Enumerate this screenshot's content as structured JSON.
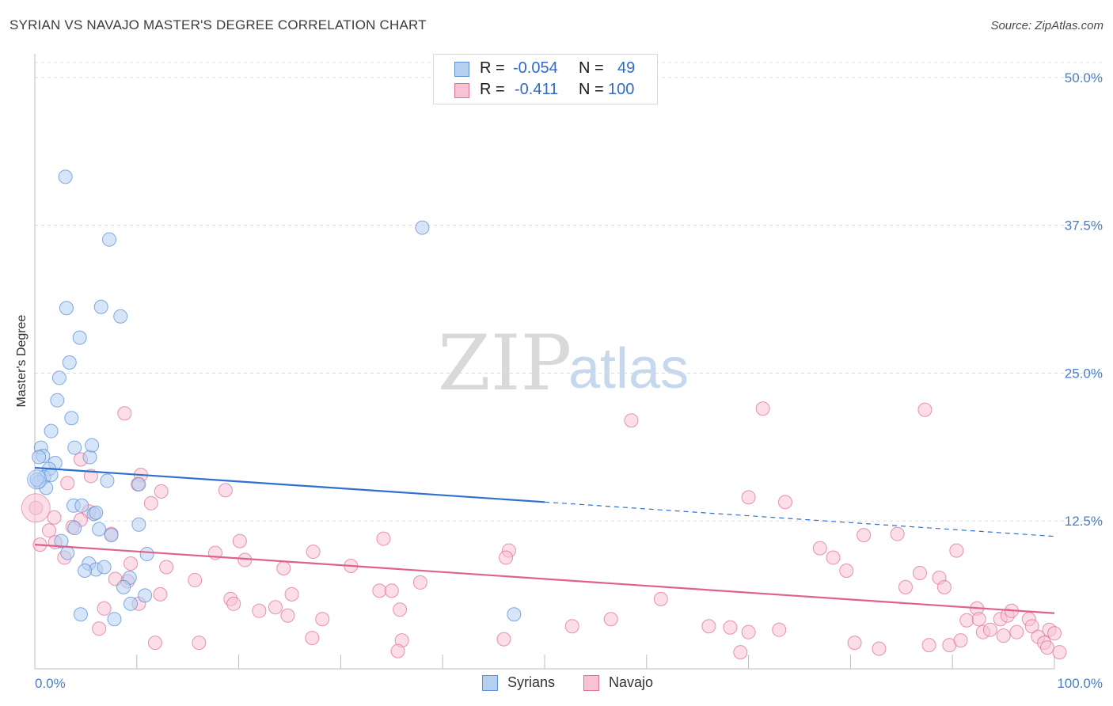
{
  "title": "SYRIAN VS NAVAJO MASTER'S DEGREE CORRELATION CHART",
  "source": "Source: ZipAtlas.com",
  "watermark": {
    "zip": "ZIP",
    "atlas": "atlas"
  },
  "colors": {
    "syrians": "#5b8fd6",
    "syrians_fill": "#b6d0f2",
    "navajo": "#e0709a",
    "navajo_fill": "#f7c3d4",
    "tick_label": "#4a7cc8"
  },
  "legend": {
    "rows": [
      {
        "r_label": "R =",
        "r_value": "-0.054",
        "n_label": "N =",
        "n_value": "49"
      },
      {
        "r_label": "R =",
        "r_value": "-0.411",
        "n_label": "N =",
        "n_value": "100"
      }
    ]
  },
  "bottom_legend": {
    "syrians": "Syrians",
    "navajo": "Navajo"
  },
  "chart_data": {
    "type": "scatter",
    "title": "SYRIAN VS NAVAJO MASTER'S DEGREE CORRELATION CHART",
    "xlabel": "",
    "ylabel": "Master's Degree",
    "xlim": [
      0,
      100
    ],
    "ylim": [
      0,
      52
    ],
    "x_tick_labels": [
      "0.0%",
      "100.0%"
    ],
    "y_ticks": [
      12.5,
      25.0,
      37.5,
      50.0
    ],
    "y_tick_labels": [
      "12.5%",
      "25.0%",
      "37.5%",
      "50.0%"
    ],
    "grid": true,
    "series": [
      {
        "name": "Syrians",
        "r": -0.054,
        "n": 49,
        "trend": {
          "x0": 0,
          "y0": 17.0,
          "x1": 100,
          "y1": 11.2,
          "solid_until": 50
        },
        "points": [
          [
            3.0,
            41.6
          ],
          [
            7.3,
            36.3
          ],
          [
            38.0,
            37.3
          ],
          [
            3.1,
            30.5
          ],
          [
            6.5,
            30.6
          ],
          [
            8.4,
            29.8
          ],
          [
            4.4,
            28.0
          ],
          [
            3.4,
            25.9
          ],
          [
            2.4,
            24.6
          ],
          [
            2.2,
            22.7
          ],
          [
            3.6,
            21.2
          ],
          [
            1.6,
            20.1
          ],
          [
            0.6,
            18.7
          ],
          [
            0.8,
            18.0
          ],
          [
            2.0,
            17.4
          ],
          [
            1.4,
            16.9
          ],
          [
            0.4,
            17.9
          ],
          [
            0.9,
            16.2
          ],
          [
            1.6,
            16.4
          ],
          [
            0.4,
            15.8
          ],
          [
            1.1,
            15.3
          ],
          [
            5.4,
            17.9
          ],
          [
            5.6,
            18.9
          ],
          [
            3.9,
            18.7
          ],
          [
            7.1,
            15.9
          ],
          [
            10.2,
            15.6
          ],
          [
            3.8,
            13.8
          ],
          [
            4.6,
            13.8
          ],
          [
            5.8,
            13.1
          ],
          [
            6.0,
            13.2
          ],
          [
            3.9,
            11.9
          ],
          [
            6.3,
            11.8
          ],
          [
            10.2,
            12.2
          ],
          [
            7.5,
            11.3
          ],
          [
            2.6,
            10.8
          ],
          [
            3.2,
            9.8
          ],
          [
            11.0,
            9.7
          ],
          [
            5.3,
            8.9
          ],
          [
            6.0,
            8.4
          ],
          [
            4.9,
            8.3
          ],
          [
            6.8,
            8.6
          ],
          [
            9.3,
            7.7
          ],
          [
            8.7,
            6.9
          ],
          [
            10.8,
            6.2
          ],
          [
            9.4,
            5.5
          ],
          [
            4.5,
            4.6
          ],
          [
            7.8,
            4.2
          ],
          [
            47.0,
            4.6
          ],
          [
            0.2,
            16.0
          ]
        ]
      },
      {
        "name": "Navajo",
        "r": -0.411,
        "n": 100,
        "trend": {
          "x0": 0,
          "y0": 10.5,
          "x1": 100,
          "y1": 4.7
        },
        "points": [
          [
            0.1,
            13.6
          ],
          [
            8.8,
            21.6
          ],
          [
            10.4,
            16.4
          ],
          [
            10.1,
            15.6
          ],
          [
            5.5,
            16.3
          ],
          [
            4.5,
            17.7
          ],
          [
            3.2,
            15.7
          ],
          [
            12.4,
            15.0
          ],
          [
            18.7,
            15.1
          ],
          [
            11.4,
            14.0
          ],
          [
            5.3,
            13.3
          ],
          [
            1.9,
            12.8
          ],
          [
            1.4,
            11.7
          ],
          [
            4.5,
            12.6
          ],
          [
            3.7,
            12.0
          ],
          [
            2.0,
            10.7
          ],
          [
            0.5,
            10.5
          ],
          [
            7.5,
            11.4
          ],
          [
            20.1,
            10.8
          ],
          [
            34.2,
            11.0
          ],
          [
            46.5,
            10.0
          ],
          [
            17.7,
            9.8
          ],
          [
            20.6,
            9.2
          ],
          [
            27.3,
            9.9
          ],
          [
            46.2,
            9.4
          ],
          [
            2.9,
            9.4
          ],
          [
            9.4,
            8.9
          ],
          [
            12.9,
            8.6
          ],
          [
            24.4,
            8.5
          ],
          [
            31.0,
            8.7
          ],
          [
            37.8,
            7.3
          ],
          [
            15.7,
            7.5
          ],
          [
            7.9,
            7.6
          ],
          [
            9.1,
            7.4
          ],
          [
            33.8,
            6.6
          ],
          [
            35.0,
            6.6
          ],
          [
            12.3,
            6.3
          ],
          [
            25.2,
            6.3
          ],
          [
            19.2,
            5.9
          ],
          [
            19.5,
            5.5
          ],
          [
            23.6,
            5.2
          ],
          [
            10.2,
            5.5
          ],
          [
            6.8,
            5.1
          ],
          [
            22.0,
            4.9
          ],
          [
            24.8,
            4.5
          ],
          [
            35.8,
            5.0
          ],
          [
            28.2,
            4.2
          ],
          [
            6.3,
            3.4
          ],
          [
            11.8,
            2.2
          ],
          [
            16.1,
            2.2
          ],
          [
            27.2,
            2.6
          ],
          [
            36.0,
            2.4
          ],
          [
            46.0,
            2.5
          ],
          [
            35.6,
            1.5
          ],
          [
            52.7,
            3.6
          ],
          [
            56.5,
            4.2
          ],
          [
            58.5,
            21.0
          ],
          [
            61.4,
            5.9
          ],
          [
            66.1,
            3.6
          ],
          [
            68.2,
            3.5
          ],
          [
            70.0,
            3.1
          ],
          [
            71.4,
            22.0
          ],
          [
            69.2,
            1.4
          ],
          [
            73.0,
            3.3
          ],
          [
            70.0,
            14.5
          ],
          [
            73.6,
            14.1
          ],
          [
            77.0,
            10.2
          ],
          [
            78.3,
            9.4
          ],
          [
            79.6,
            8.3
          ],
          [
            81.3,
            11.3
          ],
          [
            80.4,
            2.2
          ],
          [
            82.8,
            1.7
          ],
          [
            84.6,
            11.4
          ],
          [
            85.4,
            6.9
          ],
          [
            86.8,
            8.1
          ],
          [
            87.3,
            21.9
          ],
          [
            88.7,
            7.7
          ],
          [
            89.2,
            6.9
          ],
          [
            87.7,
            2.0
          ],
          [
            89.7,
            2.0
          ],
          [
            90.4,
            10.0
          ],
          [
            91.4,
            4.1
          ],
          [
            92.4,
            5.1
          ],
          [
            92.6,
            4.2
          ],
          [
            93.0,
            3.1
          ],
          [
            93.7,
            3.3
          ],
          [
            94.7,
            4.2
          ],
          [
            95.4,
            4.5
          ],
          [
            95.8,
            4.9
          ],
          [
            95.0,
            2.8
          ],
          [
            96.3,
            3.1
          ],
          [
            97.5,
            4.2
          ],
          [
            97.8,
            3.6
          ],
          [
            98.4,
            2.7
          ],
          [
            99.0,
            2.2
          ],
          [
            99.5,
            3.3
          ],
          [
            100.0,
            3.0
          ],
          [
            99.3,
            1.8
          ],
          [
            100.5,
            1.4
          ],
          [
            90.8,
            2.4
          ]
        ]
      }
    ]
  }
}
